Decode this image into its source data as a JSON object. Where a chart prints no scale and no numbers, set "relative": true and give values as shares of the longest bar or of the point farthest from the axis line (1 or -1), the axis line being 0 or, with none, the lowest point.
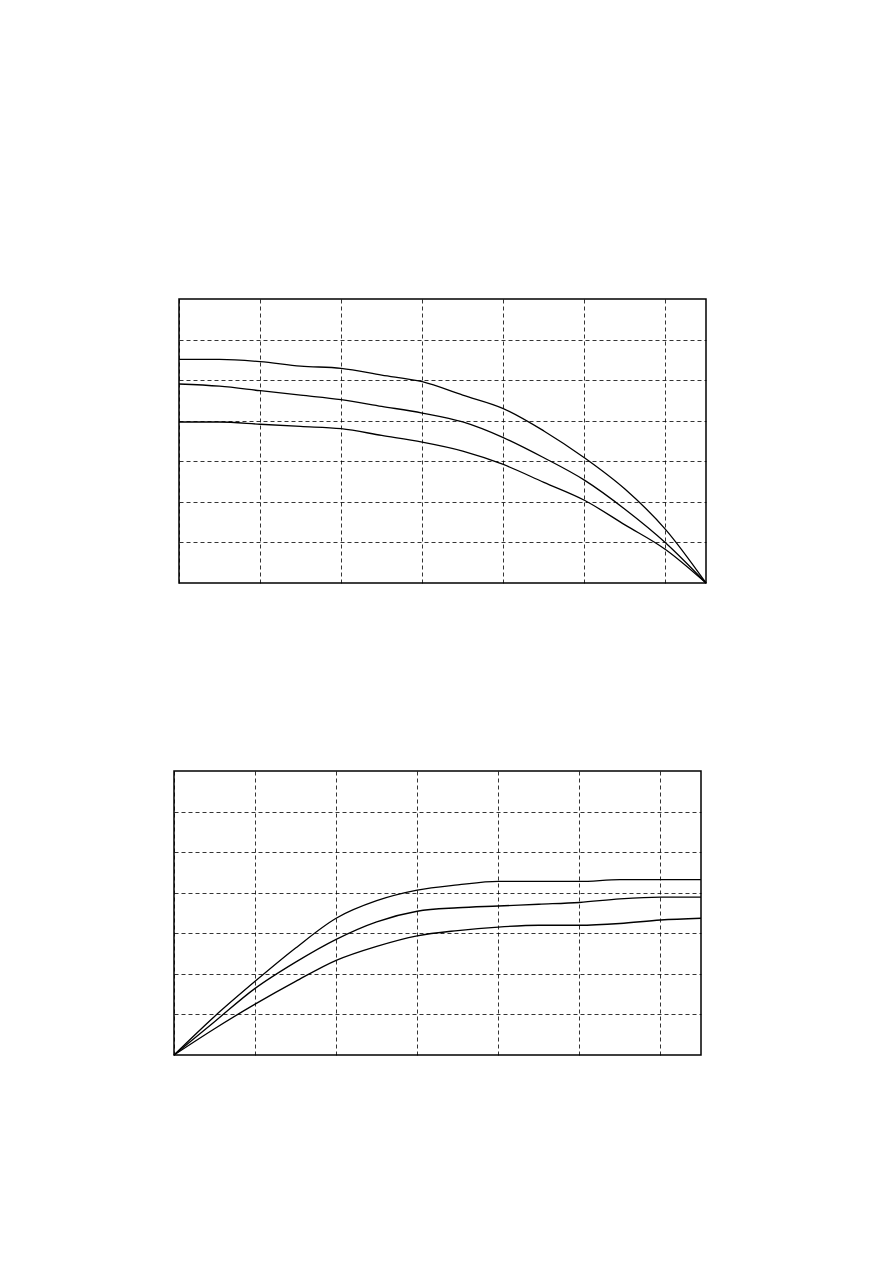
{
  "chart_data": [
    {
      "type": "line",
      "relative": true,
      "grid": true,
      "categories": [
        null,
        null,
        null,
        null,
        null,
        null,
        null,
        null,
        null,
        null,
        null,
        null,
        null,
        null
      ],
      "series": [
        {
          "color": "#000000",
          "values": [
            1,
            1.0,
            0.99,
            0.97,
            0.96,
            0.93,
            0.9,
            0.84,
            0.78,
            0.68,
            0.56,
            0.42,
            0.24,
            0
          ]
        },
        {
          "color": "#000000",
          "values": [
            0.89,
            0.88,
            0.86,
            0.84,
            0.82,
            0.79,
            0.76,
            0.72,
            0.65,
            0.56,
            0.46,
            0.33,
            0.18,
            0
          ]
        },
        {
          "color": "#000000",
          "values": [
            0.72,
            0.72,
            0.71,
            0.7,
            0.69,
            0.66,
            0.63,
            0.59,
            0.53,
            0.45,
            0.37,
            0.26,
            0.15,
            0
          ]
        }
      ]
    },
    {
      "type": "line",
      "relative": true,
      "grid": true,
      "categories": [
        null,
        null,
        null,
        null,
        null,
        null,
        null,
        null,
        null,
        null,
        null,
        null,
        null,
        null
      ],
      "series": [
        {
          "color": "#000000",
          "values": [
            0,
            0.22,
            0.42,
            0.61,
            0.78,
            0.88,
            0.94,
            0.97,
            0.99,
            0.99,
            0.99,
            1,
            1,
            1
          ]
        },
        {
          "color": "#000000",
          "values": [
            0,
            0.19,
            0.38,
            0.53,
            0.66,
            0.76,
            0.82,
            0.84,
            0.85,
            0.86,
            0.87,
            0.89,
            0.9,
            0.9
          ]
        },
        {
          "color": "#000000",
          "values": [
            0,
            0.15,
            0.29,
            0.42,
            0.54,
            0.62,
            0.68,
            0.71,
            0.73,
            0.74,
            0.74,
            0.75,
            0.77,
            0.78
          ]
        }
      ]
    }
  ]
}
